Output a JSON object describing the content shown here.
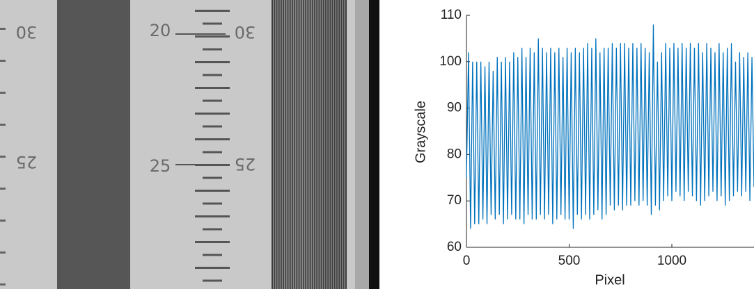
{
  "photo": {
    "labels": [
      "30",
      "20",
      "30",
      "25",
      "25",
      "25"
    ]
  },
  "chart_data": {
    "type": "line",
    "xlabel": "Pixel",
    "ylabel": "Grayscale",
    "color": "#0072bd",
    "xlim": [
      0,
      1400
    ],
    "xticks": [
      0,
      500,
      1000
    ],
    "ylim": [
      60,
      110
    ],
    "yticks": [
      60,
      70,
      80,
      90,
      100,
      110
    ],
    "x": [
      0,
      10,
      20,
      30,
      40,
      50,
      60,
      70,
      80,
      90,
      100,
      110,
      120,
      130,
      140,
      150,
      160,
      170,
      180,
      190,
      200,
      210,
      220,
      230,
      240,
      250,
      260,
      270,
      280,
      290,
      300,
      310,
      320,
      330,
      340,
      350,
      360,
      370,
      380,
      390,
      400,
      410,
      420,
      430,
      440,
      450,
      460,
      470,
      480,
      490,
      500,
      510,
      520,
      530,
      540,
      550,
      560,
      570,
      580,
      590,
      600,
      610,
      620,
      630,
      640,
      650,
      660,
      670,
      680,
      690,
      700,
      710,
      720,
      730,
      740,
      750,
      760,
      770,
      780,
      790,
      800,
      810,
      820,
      830,
      840,
      850,
      860,
      870,
      880,
      890,
      900,
      910,
      920,
      930,
      940,
      950,
      960,
      970,
      980,
      990,
      1000,
      1010,
      1020,
      1030,
      1040,
      1050,
      1060,
      1070,
      1080,
      1090,
      1100,
      1110,
      1120,
      1130,
      1140,
      1150,
      1160,
      1170,
      1180,
      1190,
      1200,
      1210,
      1220,
      1230,
      1240,
      1250,
      1260,
      1270,
      1280,
      1290,
      1300,
      1310,
      1320,
      1330,
      1340,
      1350,
      1360,
      1370,
      1380,
      1390,
      1400
    ],
    "values": [
      75,
      102,
      64,
      100,
      65,
      100,
      65,
      100,
      66,
      99,
      65,
      100,
      67,
      98,
      66,
      101,
      67,
      100,
      65,
      101,
      66,
      100,
      67,
      102,
      66,
      101,
      66,
      103,
      65,
      101,
      67,
      103,
      66,
      102,
      66,
      105,
      67,
      103,
      66,
      102,
      67,
      103,
      65,
      102,
      66,
      103,
      67,
      101,
      66,
      103,
      66,
      102,
      64,
      103,
      67,
      102,
      66,
      103,
      67,
      104,
      66,
      103,
      67,
      105,
      68,
      102,
      66,
      103,
      67,
      103,
      69,
      104,
      68,
      103,
      69,
      104,
      68,
      104,
      69,
      103,
      69,
      104,
      70,
      103,
      69,
      104,
      70,
      103,
      69,
      102,
      67,
      108,
      69,
      100,
      68,
      102,
      70,
      104,
      71,
      103,
      70,
      104,
      72,
      103,
      71,
      104,
      70,
      103,
      72,
      104,
      71,
      103,
      70,
      104,
      69,
      102,
      70,
      104,
      71,
      103,
      72,
      102,
      70,
      104,
      71,
      102,
      69,
      103,
      70,
      104,
      71,
      100,
      72,
      102,
      71,
      101,
      72,
      102,
      70,
      101,
      73
    ]
  }
}
